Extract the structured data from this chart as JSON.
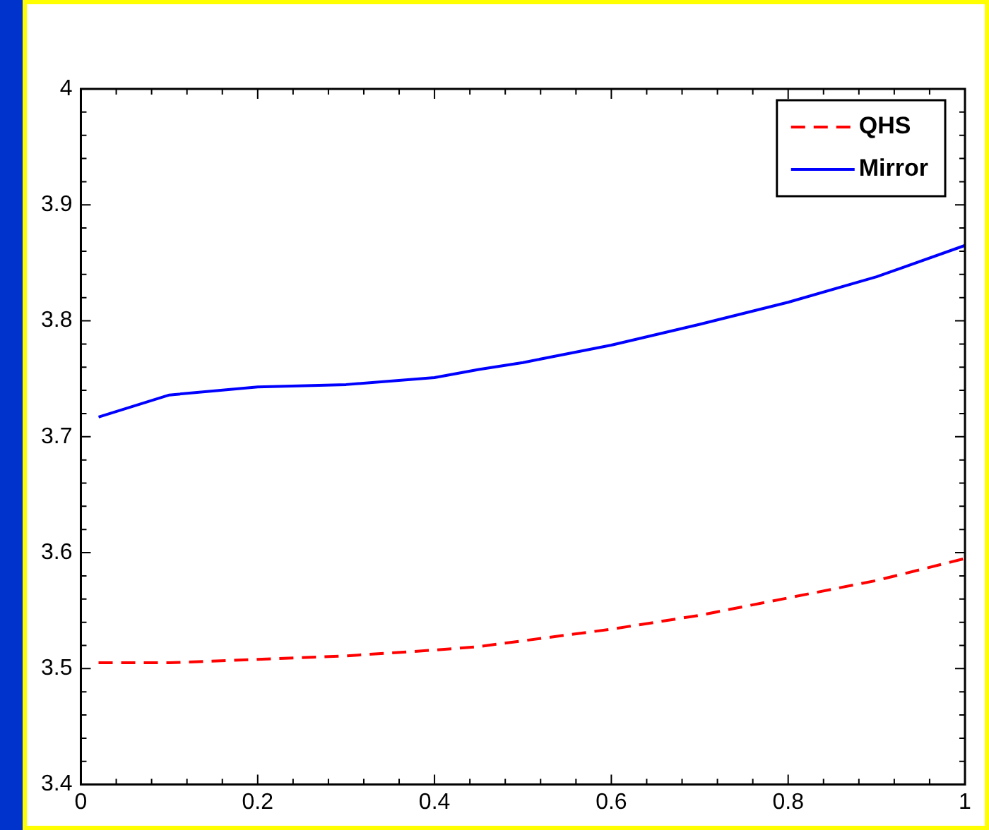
{
  "chart_data": {
    "type": "line",
    "x": [
      0.02,
      0.1,
      0.2,
      0.3,
      0.4,
      0.45,
      0.5,
      0.6,
      0.7,
      0.8,
      0.9,
      1.0
    ],
    "series": [
      {
        "name": "QHS",
        "color": "#ff0000",
        "line_style": "dashed",
        "values": [
          3.505,
          3.505,
          3.508,
          3.511,
          3.516,
          3.519,
          3.524,
          3.534,
          3.546,
          3.561,
          3.576,
          3.595
        ]
      },
      {
        "name": "Mirror",
        "color": "#0000ff",
        "line_style": "solid",
        "values": [
          3.717,
          3.736,
          3.743,
          3.745,
          3.751,
          3.758,
          3.764,
          3.779,
          3.797,
          3.816,
          3.838,
          3.865
        ]
      }
    ],
    "xlim": [
      0,
      1
    ],
    "xticks": [
      0,
      0.2,
      0.4,
      0.6,
      0.8,
      1
    ],
    "ylim": [
      3.4,
      4
    ],
    "yticks": [
      3.4,
      3.5,
      3.6,
      3.7,
      3.8,
      3.9,
      4
    ],
    "grid": false,
    "legend": "top right",
    "marker": "none"
  }
}
